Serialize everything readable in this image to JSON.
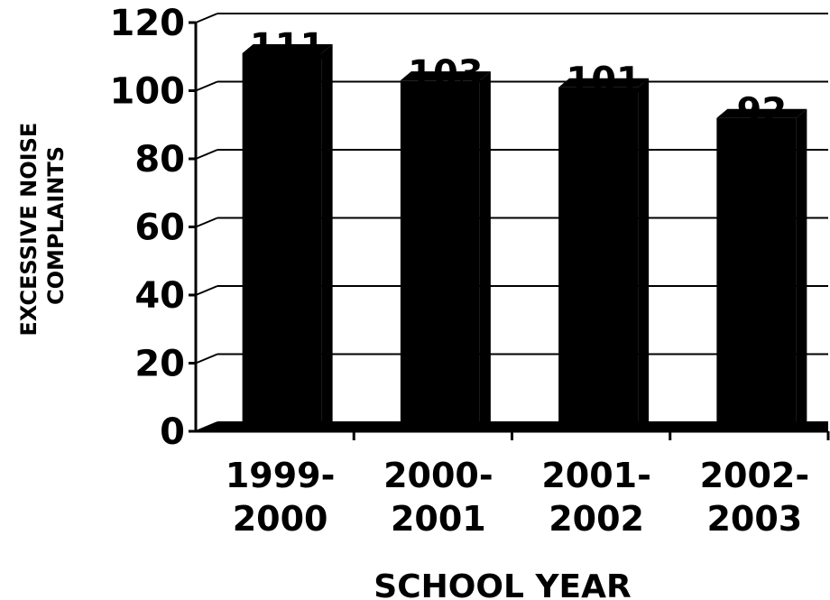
{
  "chart_data": {
    "type": "bar",
    "title": "",
    "xlabel": "SCHOOL YEAR",
    "ylabel_lines": [
      "EXCESSIVE NOISE",
      "COMPLAINTS"
    ],
    "categories": [
      [
        "1999-",
        "2000"
      ],
      [
        "2000-",
        "2001"
      ],
      [
        "2001-",
        "2002"
      ],
      [
        "2002-",
        "2003"
      ]
    ],
    "values": [
      111,
      103,
      101,
      92
    ],
    "data_labels": [
      "111",
      "103",
      "101",
      "92"
    ],
    "ylim": [
      0,
      120
    ],
    "yticks": [
      "0",
      "20",
      "40",
      "60",
      "80",
      "100",
      "120"
    ],
    "grid": true,
    "bar_color": "#000000"
  }
}
